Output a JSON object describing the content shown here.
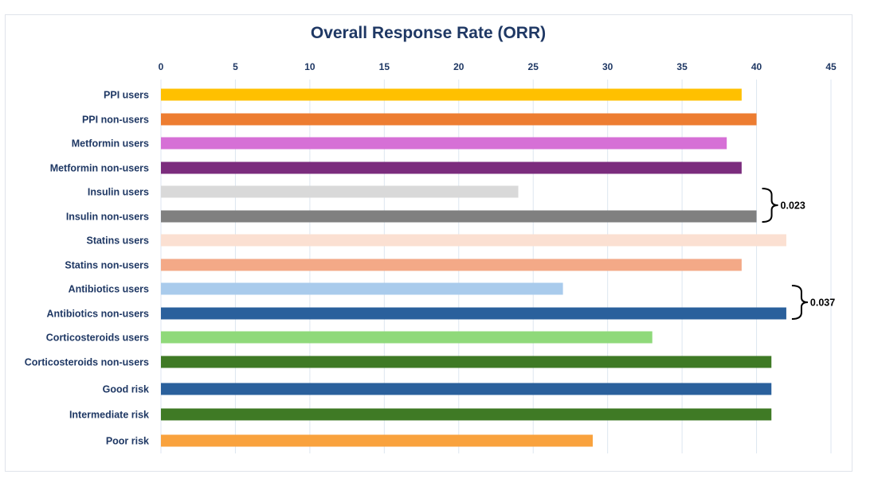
{
  "chart_data": {
    "type": "bar",
    "orientation": "horizontal",
    "title": "Overall Response Rate (ORR)",
    "xlim": [
      0,
      45
    ],
    "x_ticks": [
      "0",
      "5",
      "10",
      "15",
      "20",
      "25",
      "30",
      "35",
      "40",
      "45"
    ],
    "x_axis_position": "top",
    "grid": true,
    "categories": [
      "PPI users",
      "PPI non-users",
      "Metformin users",
      "Metformin non-users",
      "Insulin users",
      "Insulin non-users",
      "Statins users",
      "Statins non-users",
      "Antibiotics users",
      "Antibiotics non-users",
      "Corticosteroids users",
      "Corticosteroids non-users",
      "Good risk",
      "Intermediate risk",
      "Poor risk"
    ],
    "values": [
      39,
      40,
      38,
      39,
      24,
      40,
      42,
      39,
      27,
      42,
      33,
      41,
      41,
      41,
      29
    ],
    "colors": [
      "#ffc000",
      "#ed7d31",
      "#d670d6",
      "#7b2c7d",
      "#d9d9d9",
      "#808080",
      "#fbe0d2",
      "#f3a987",
      "#a9cbec",
      "#2a609c",
      "#8fd97a",
      "#3f7a25",
      "#2a609c",
      "#3f7a25",
      "#f9a23d"
    ],
    "annotations": [
      {
        "text": "0.023",
        "between": [
          "Insulin users",
          "Insulin non-users"
        ]
      },
      {
        "text": "0.037",
        "between": [
          "Antibiotics users",
          "Antibiotics non-users"
        ]
      }
    ]
  }
}
